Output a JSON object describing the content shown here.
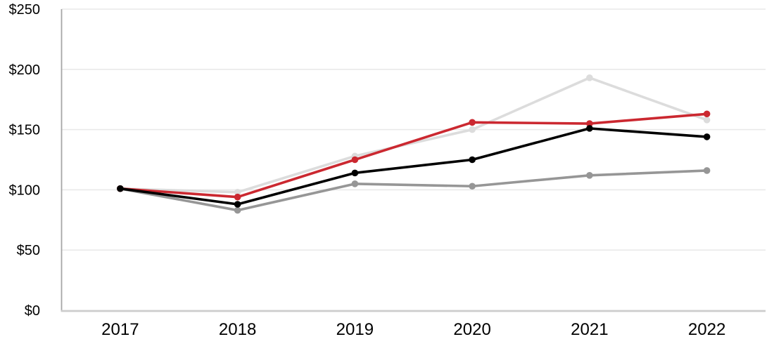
{
  "chart_data": {
    "type": "line",
    "title": "",
    "xlabel": "",
    "ylabel": "",
    "categories": [
      "2017",
      "2018",
      "2019",
      "2020",
      "2021",
      "2022"
    ],
    "series": [
      {
        "name": "light-gray-series",
        "color": "#dcdcdc",
        "values": [
          101,
          98,
          128,
          150,
          193,
          158
        ]
      },
      {
        "name": "gray-series",
        "color": "#969696",
        "values": [
          101,
          83,
          105,
          103,
          112,
          116
        ]
      },
      {
        "name": "red-series",
        "color": "#cb2830",
        "values": [
          101,
          94,
          125,
          156,
          155,
          163
        ]
      },
      {
        "name": "black-series",
        "color": "#000000",
        "values": [
          101,
          88,
          114,
          125,
          151,
          144
        ]
      }
    ],
    "y_ticks": [
      {
        "value": 0,
        "label": "$0"
      },
      {
        "value": 50,
        "label": "$50"
      },
      {
        "value": 100,
        "label": "$100"
      },
      {
        "value": 150,
        "label": "$150"
      },
      {
        "value": 200,
        "label": "$200"
      },
      {
        "value": 250,
        "label": "$250"
      }
    ],
    "ylim": [
      0,
      250
    ],
    "grid": true,
    "legend_position": "none",
    "colors": {
      "gridline": "#e9e9e9",
      "y_axis_line": "#a6a6a6",
      "x_axis_line": "#cccccc",
      "tick_text": "#000000"
    }
  }
}
